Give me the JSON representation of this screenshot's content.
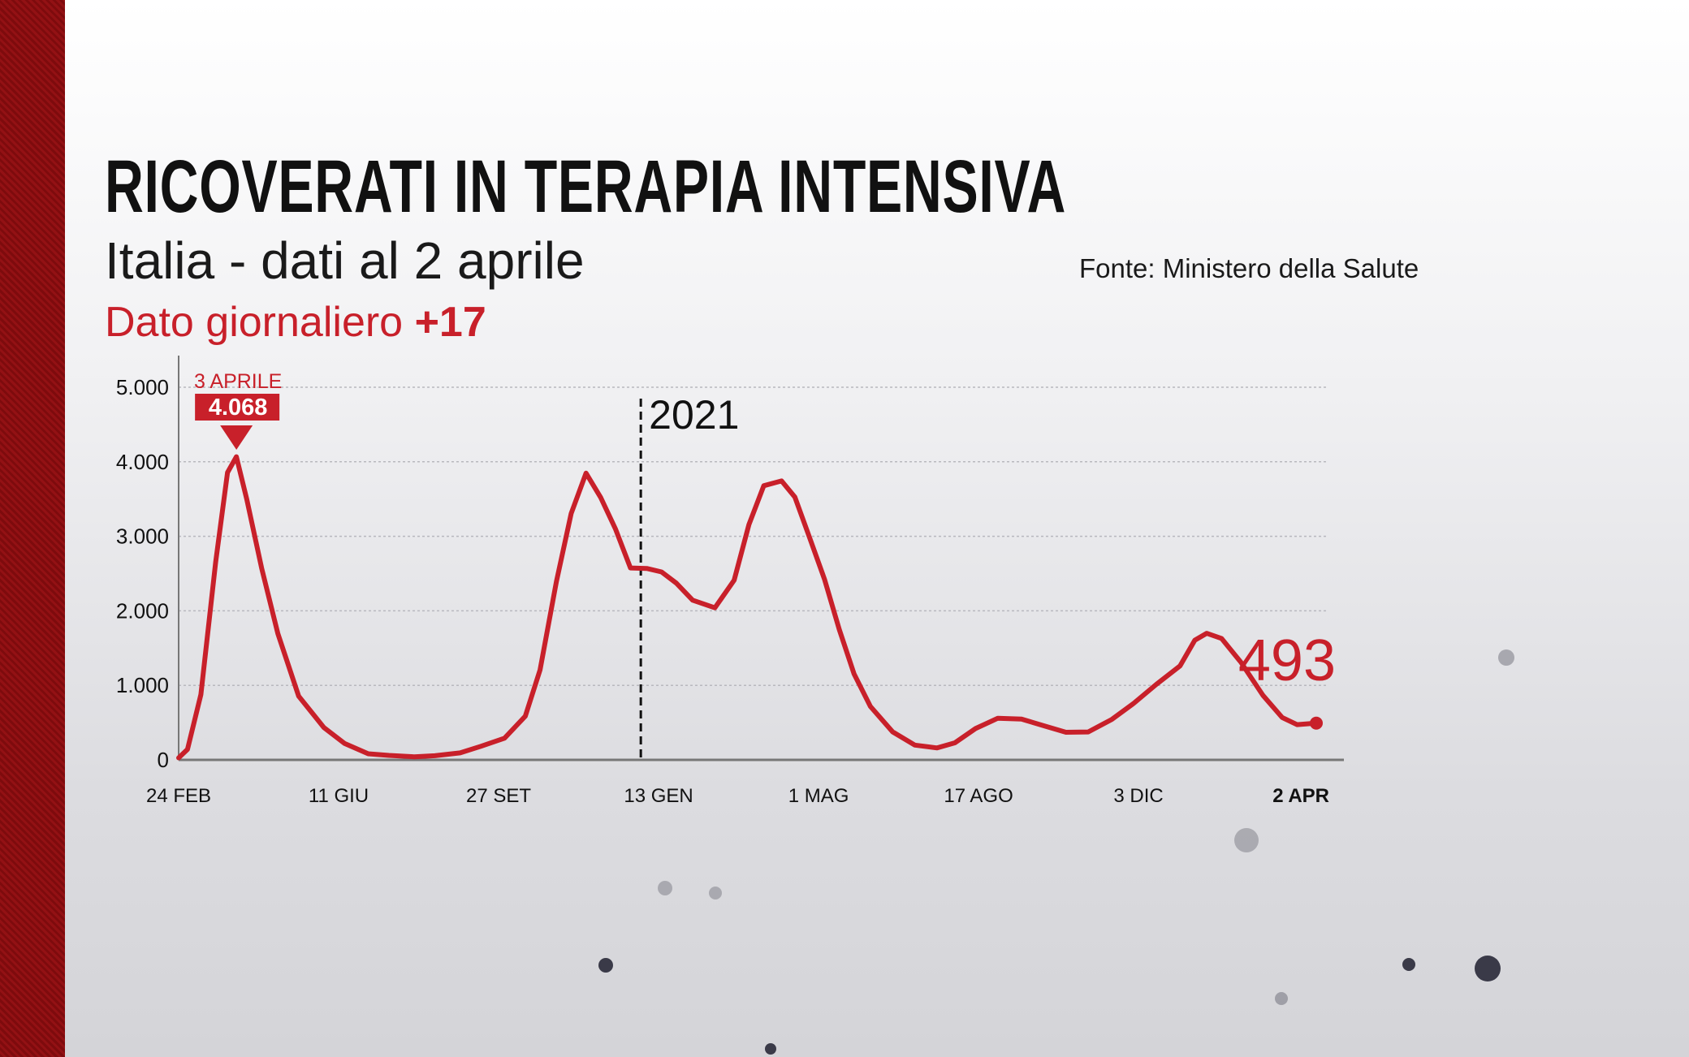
{
  "header": {
    "title": "RICOVERATI IN TERAPIA INTENSIVA",
    "subtitle": "Italia - dati al 2 aprile",
    "daily_label": "Dato giornaliero",
    "daily_value": "+17",
    "source": "Fonte: Ministero della Salute"
  },
  "colors": {
    "accent": "#c8202a",
    "band": "#8b0e10",
    "text": "#111111"
  },
  "chart_data": {
    "type": "line",
    "title": "RICOVERATI IN TERAPIA INTENSIVA",
    "xlabel": "",
    "ylabel": "",
    "xlim": [
      "2020-02-24",
      "2022-04-02"
    ],
    "ylim": [
      0,
      5000
    ],
    "grid": true,
    "y_ticks": [
      {
        "value": 0,
        "label": "0"
      },
      {
        "value": 1000,
        "label": "1.000"
      },
      {
        "value": 2000,
        "label": "2.000"
      },
      {
        "value": 3000,
        "label": "3.000"
      },
      {
        "value": 4000,
        "label": "4.000"
      },
      {
        "value": 5000,
        "label": "5.000"
      }
    ],
    "x_ticks": [
      {
        "date": "2020-02-24",
        "label": "24 FEB"
      },
      {
        "date": "2020-06-11",
        "label": "11 GIU"
      },
      {
        "date": "2020-09-27",
        "label": "27 SET"
      },
      {
        "date": "2021-01-13",
        "label": "13 GEN"
      },
      {
        "date": "2021-05-01",
        "label": "1 MAG"
      },
      {
        "date": "2021-08-17",
        "label": "17 AGO"
      },
      {
        "date": "2021-12-03",
        "label": "3 DIC"
      },
      {
        "date": "2022-04-02",
        "label": "2 APR"
      }
    ],
    "year_marker": {
      "date": "2021-01-01",
      "label": "2021"
    },
    "peak_annotation": {
      "date": "2020-04-03",
      "value": 4068,
      "date_label": "3 APRILE",
      "value_label": "4.068"
    },
    "last_value": {
      "date": "2022-04-02",
      "value": 493,
      "label": "493"
    },
    "series": [
      {
        "color": "#c8202a",
        "points": [
          [
            "2020-02-24",
            27
          ],
          [
            "2020-03-01",
            140
          ],
          [
            "2020-03-10",
            877
          ],
          [
            "2020-03-20",
            2655
          ],
          [
            "2020-03-28",
            3856
          ],
          [
            "2020-04-03",
            4068
          ],
          [
            "2020-04-10",
            3497
          ],
          [
            "2020-04-20",
            2573
          ],
          [
            "2020-05-01",
            1694
          ],
          [
            "2020-05-15",
            855
          ],
          [
            "2020-06-01",
            435
          ],
          [
            "2020-06-15",
            220
          ],
          [
            "2020-07-01",
            82
          ],
          [
            "2020-07-15",
            60
          ],
          [
            "2020-08-01",
            41
          ],
          [
            "2020-08-15",
            56
          ],
          [
            "2020-09-01",
            94
          ],
          [
            "2020-09-15",
            182
          ],
          [
            "2020-10-01",
            291
          ],
          [
            "2020-10-15",
            586
          ],
          [
            "2020-10-25",
            1208
          ],
          [
            "2020-11-05",
            2391
          ],
          [
            "2020-11-15",
            3306
          ],
          [
            "2020-11-25",
            3848
          ],
          [
            "2020-12-05",
            3517
          ],
          [
            "2020-12-15",
            3095
          ],
          [
            "2020-12-25",
            2575
          ],
          [
            "2021-01-05",
            2569
          ],
          [
            "2021-01-15",
            2522
          ],
          [
            "2021-01-25",
            2372
          ],
          [
            "2021-02-05",
            2143
          ],
          [
            "2021-02-20",
            2040
          ],
          [
            "2021-03-05",
            2411
          ],
          [
            "2021-03-15",
            3157
          ],
          [
            "2021-03-25",
            3679
          ],
          [
            "2021-04-06",
            3743
          ],
          [
            "2021-04-15",
            3526
          ],
          [
            "2021-04-25",
            2979
          ],
          [
            "2021-05-05",
            2423
          ],
          [
            "2021-05-15",
            1748
          ],
          [
            "2021-05-25",
            1153
          ],
          [
            "2021-06-05",
            717
          ],
          [
            "2021-06-20",
            376
          ],
          [
            "2021-07-05",
            198
          ],
          [
            "2021-07-20",
            160
          ],
          [
            "2021-08-01",
            229
          ],
          [
            "2021-08-15",
            420
          ],
          [
            "2021-08-30",
            559
          ],
          [
            "2021-09-15",
            547
          ],
          [
            "2021-10-01",
            452
          ],
          [
            "2021-10-15",
            370
          ],
          [
            "2021-10-30",
            375
          ],
          [
            "2021-11-15",
            544
          ],
          [
            "2021-11-30",
            762
          ],
          [
            "2021-12-15",
            1013
          ],
          [
            "2021-12-31",
            1260
          ],
          [
            "2022-01-10",
            1606
          ],
          [
            "2022-01-18",
            1698
          ],
          [
            "2022-01-28",
            1630
          ],
          [
            "2022-02-10",
            1313
          ],
          [
            "2022-02-25",
            866
          ],
          [
            "2022-03-10",
            569
          ],
          [
            "2022-03-20",
            473
          ],
          [
            "2022-04-02",
            493
          ]
        ]
      }
    ]
  }
}
